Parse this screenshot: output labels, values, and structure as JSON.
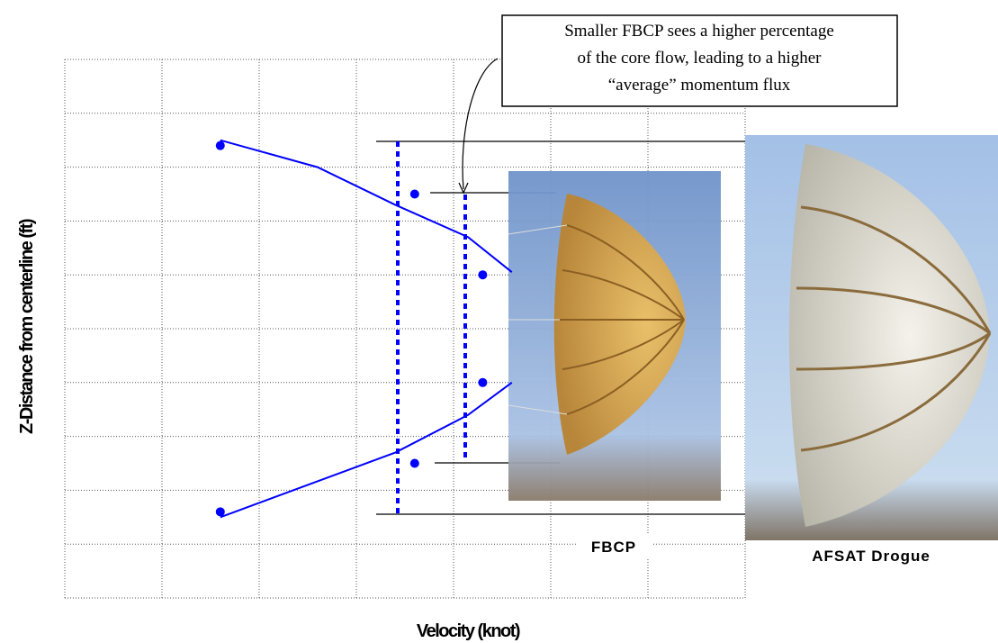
{
  "chart_data": {
    "type": "scatter",
    "x_label": "Velocity (knot)",
    "y_label": "Z-Distance from centerline (ft)",
    "annotation_lines": [
      "Smaller FBCP sees a higher percentage",
      "of the core flow, leading to a higher",
      "“average” momentum flux"
    ],
    "image_labels": [
      "FBCP",
      "AFSAT Drogue"
    ],
    "xlim": [
      0,
      7
    ],
    "ylim": [
      0,
      10
    ],
    "xticks": [
      0,
      1,
      2,
      3,
      4,
      5,
      6,
      7
    ],
    "yticks": [
      0,
      1,
      2,
      3,
      4,
      5,
      6,
      7,
      8,
      9,
      10
    ],
    "grid": true,
    "series": [
      {
        "type": "scatter",
        "color": "#0000ff",
        "x": [
          1.6,
          3.6,
          4.3,
          4.3,
          3.6,
          1.6
        ],
        "values": [
          8.4,
          7.5,
          6.0,
          4.0,
          2.5,
          1.6
        ]
      },
      {
        "type": "line",
        "color": "#0000ff",
        "x": [
          1.6,
          2.6,
          3.4,
          4.15,
          4.6
        ],
        "values": [
          8.5,
          8.0,
          7.3,
          6.7,
          6.05
        ]
      },
      {
        "type": "line",
        "color": "#0000ff",
        "x": [
          1.6,
          2.5,
          3.4,
          4.15,
          4.6
        ],
        "values": [
          1.5,
          2.1,
          2.7,
          3.4,
          4.0
        ]
      }
    ]
  }
}
